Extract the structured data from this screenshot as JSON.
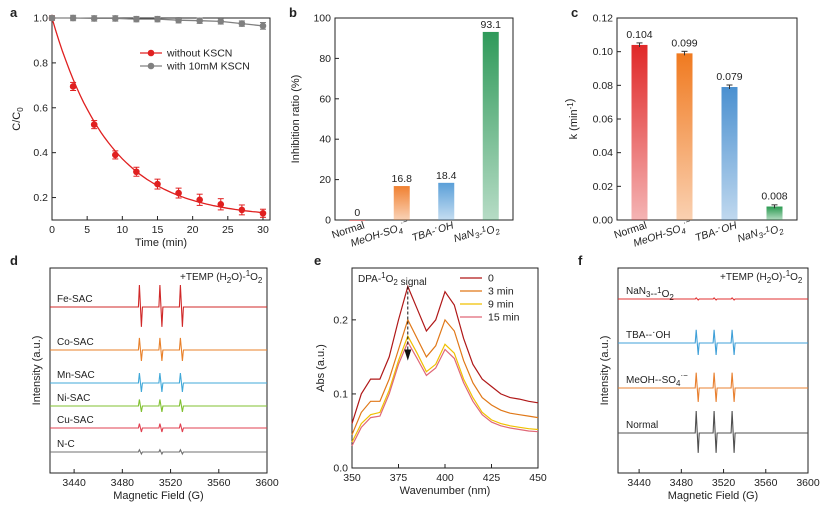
{
  "chart_data": [
    {
      "panel": "a",
      "type": "line",
      "xlabel": "Time (min)",
      "ylabel": "C/C0",
      "xlim": [
        0,
        31
      ],
      "ylim": [
        0.1,
        1.0
      ],
      "xticks": [
        0,
        5,
        10,
        15,
        20,
        25,
        30
      ],
      "yticks": [
        0.2,
        0.4,
        0.6,
        0.8,
        1.0
      ],
      "xticklabels": [
        "0",
        "5",
        "10",
        "15",
        "20",
        "25",
        "30"
      ],
      "yticklabels": [
        "0.2",
        "0.4",
        "0.6",
        "0.8",
        "1.0"
      ],
      "legend_position": "top-right",
      "series": [
        {
          "name": "without KSCN",
          "color": "#e02020",
          "x": [
            0,
            3,
            6,
            9,
            12,
            15,
            18,
            21,
            24,
            27,
            30
          ],
          "y": [
            1.0,
            0.695,
            0.525,
            0.39,
            0.315,
            0.26,
            0.22,
            0.19,
            0.17,
            0.145,
            0.13
          ],
          "err": [
            0.01,
            0.018,
            0.018,
            0.018,
            0.02,
            0.022,
            0.022,
            0.025,
            0.025,
            0.022,
            0.018
          ],
          "fit": "exponential"
        },
        {
          "name": "with 10mM KSCN",
          "color": "#808080",
          "x": [
            0,
            3,
            6,
            9,
            12,
            15,
            18,
            21,
            24,
            27,
            30
          ],
          "y": [
            1.0,
            1.0,
            0.998,
            0.998,
            0.995,
            0.995,
            0.99,
            0.988,
            0.985,
            0.975,
            0.965
          ],
          "err": [
            0.01,
            0.012,
            0.012,
            0.012,
            0.012,
            0.012,
            0.012,
            0.012,
            0.012,
            0.012,
            0.015
          ]
        }
      ]
    },
    {
      "panel": "b",
      "type": "bar",
      "ylabel": "Inhibition ratio (%)",
      "ylim": [
        0,
        100
      ],
      "yticks": [
        0,
        20,
        40,
        60,
        80,
        100
      ],
      "yticklabels": [
        "0",
        "20",
        "40",
        "60",
        "80",
        "100"
      ],
      "categories": [
        "Normal",
        "MeOH-SO4·−",
        "TBA-·OH",
        "NaN3-1O2"
      ],
      "values": [
        0,
        16.8,
        18.4,
        93.1
      ],
      "value_labels": [
        "0",
        "16.8",
        "18.4",
        "93.1"
      ],
      "colors": [
        "#e03030",
        "#f08030",
        "#5a9fd8",
        "#2f9a5a"
      ]
    },
    {
      "panel": "c",
      "type": "bar",
      "ylabel": "k (min-1)",
      "ylim": [
        0,
        0.12
      ],
      "yticks": [
        0,
        0.02,
        0.04,
        0.06,
        0.08,
        0.1,
        0.12
      ],
      "yticklabels": [
        "0.00",
        "0.02",
        "0.04",
        "0.06",
        "0.08",
        "0.10",
        "0.12"
      ],
      "categories": [
        "Normal",
        "MeOH-SO4·−",
        "TBA-·OH",
        "NaN3-1O2"
      ],
      "values": [
        0.104,
        0.099,
        0.079,
        0.008
      ],
      "value_labels": [
        "0.104",
        "0.099",
        "0.079",
        "0.008"
      ],
      "err": [
        0.0012,
        0.0012,
        0.0012,
        0.001
      ],
      "colors": [
        "#e02828",
        "#f07a20",
        "#4a90d0",
        "#2a9a50"
      ]
    },
    {
      "panel": "d",
      "type": "line",
      "xlabel": "Magnetic Field (G)",
      "ylabel": "Intensity (a.u.)",
      "xlim": [
        3420,
        3600
      ],
      "xticks": [
        3440,
        3480,
        3520,
        3560,
        3600
      ],
      "xticklabels": [
        "3440",
        "3480",
        "3520",
        "3560",
        "3600"
      ],
      "annotation": "+TEMP (H2O)-1O2",
      "peak_positions": [
        3495,
        3512,
        3529
      ],
      "series": [
        {
          "name": "Fe-SAC",
          "color": "#d02828",
          "amplitude": 1.0
        },
        {
          "name": "Co-SAC",
          "color": "#e8802a",
          "amplitude": 0.55
        },
        {
          "name": "Mn-SAC",
          "color": "#40a8d8",
          "amplitude": 0.45
        },
        {
          "name": "Ni-SAC",
          "color": "#80c030",
          "amplitude": 0.3
        },
        {
          "name": "Cu-SAC",
          "color": "#e04050",
          "amplitude": 0.2
        },
        {
          "name": "N-C",
          "color": "#707070",
          "amplitude": 0.1
        }
      ]
    },
    {
      "panel": "e",
      "type": "line",
      "xlabel": "Wavenumber (nm)",
      "ylabel": "Abs (a.u.)",
      "xlim": [
        350,
        450
      ],
      "ylim": [
        0,
        0.27
      ],
      "xticks": [
        350,
        375,
        400,
        425,
        450
      ],
      "xticklabels": [
        "350",
        "375",
        "400",
        "425",
        "450"
      ],
      "yticks": [
        0.0,
        0.1,
        0.2
      ],
      "yticklabels": [
        "0.0",
        "0.1",
        "0.2"
      ],
      "annotation": "DPA-1O2 signal",
      "legend_position": "top-right",
      "x": [
        350,
        355,
        360,
        365,
        370,
        375,
        380,
        385,
        390,
        395,
        400,
        405,
        410,
        415,
        420,
        425,
        430,
        435,
        440,
        445,
        450
      ],
      "series": [
        {
          "name": "0",
          "color": "#b01818",
          "y": [
            0.06,
            0.1,
            0.12,
            0.12,
            0.15,
            0.2,
            0.245,
            0.215,
            0.185,
            0.2,
            0.238,
            0.22,
            0.175,
            0.14,
            0.12,
            0.11,
            0.1,
            0.095,
            0.093,
            0.09,
            0.088
          ]
        },
        {
          "name": "3 min",
          "color": "#e07818",
          "y": [
            0.045,
            0.075,
            0.09,
            0.09,
            0.12,
            0.16,
            0.2,
            0.175,
            0.15,
            0.165,
            0.2,
            0.185,
            0.145,
            0.115,
            0.095,
            0.085,
            0.078,
            0.074,
            0.072,
            0.07,
            0.068
          ]
        },
        {
          "name": "9 min",
          "color": "#f0c000",
          "y": [
            0.035,
            0.06,
            0.072,
            0.075,
            0.105,
            0.145,
            0.178,
            0.155,
            0.13,
            0.14,
            0.167,
            0.155,
            0.12,
            0.095,
            0.075,
            0.065,
            0.06,
            0.057,
            0.055,
            0.053,
            0.052
          ]
        },
        {
          "name": "15 min",
          "color": "#e06878",
          "y": [
            0.03,
            0.055,
            0.068,
            0.07,
            0.1,
            0.14,
            0.17,
            0.148,
            0.125,
            0.135,
            0.16,
            0.148,
            0.115,
            0.09,
            0.072,
            0.062,
            0.057,
            0.054,
            0.052,
            0.05,
            0.049
          ]
        }
      ]
    },
    {
      "panel": "f",
      "type": "line",
      "xlabel": "Magnetic Field (G)",
      "ylabel": "Intensity (a.u.)",
      "xlim": [
        3420,
        3600
      ],
      "xticks": [
        3440,
        3480,
        3520,
        3560,
        3600
      ],
      "xticklabels": [
        "3440",
        "3480",
        "3520",
        "3560",
        "3600"
      ],
      "annotation": "+TEMP (H2O)-1O2",
      "peak_positions": [
        3495,
        3512,
        3529
      ],
      "series": [
        {
          "name": "NaN3--1O2",
          "color": "#e03030",
          "amplitude": 0.05
        },
        {
          "name": "TBA--·OH",
          "color": "#40a0d8",
          "amplitude": 0.6
        },
        {
          "name": "MeOH--SO4·−",
          "color": "#e88030",
          "amplitude": 0.7
        },
        {
          "name": "Normal",
          "color": "#505050",
          "amplitude": 1.0
        }
      ]
    }
  ]
}
